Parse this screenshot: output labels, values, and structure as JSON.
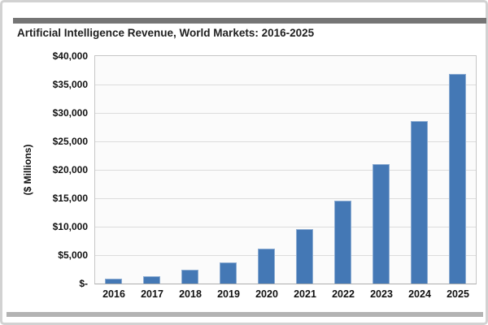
{
  "title": "Artificial Intelligence Revenue, World Markets: 2016-2025",
  "y_axis": {
    "label": "($ Millions)",
    "tick_labels_bottom_to_top": [
      "$-",
      "$5,000",
      "$10,000",
      "$15,000",
      "$20,000",
      "$25,000",
      "$30,000",
      "$35,000",
      "$40,000"
    ]
  },
  "chart_data": {
    "type": "bar",
    "title": "Artificial Intelligence Revenue, World Markets: 2016-2025",
    "categories": [
      "2016",
      "2017",
      "2018",
      "2019",
      "2020",
      "2021",
      "2022",
      "2023",
      "2024",
      "2025"
    ],
    "values": [
      800,
      1300,
      2400,
      3700,
      6100,
      9600,
      14500,
      21000,
      28500,
      36800
    ],
    "xlabel": "",
    "ylabel": "($ Millions)",
    "ylim": [
      0,
      40000
    ],
    "ytick_interval": 5000,
    "grid": true,
    "legend": false
  },
  "colors": {
    "bar_fill": "#4478b5",
    "bar_border": "#8cacd2",
    "top_rule": "#757575",
    "bottom_rule": "#b3b3b3",
    "gridline": "#dcdcdc",
    "plot_border": "#c6c6c6",
    "plot_background": "#fbfbfb",
    "title_text": "#1f1f1f",
    "axis_text": "#111111",
    "card_border": "#d2d2d2"
  }
}
